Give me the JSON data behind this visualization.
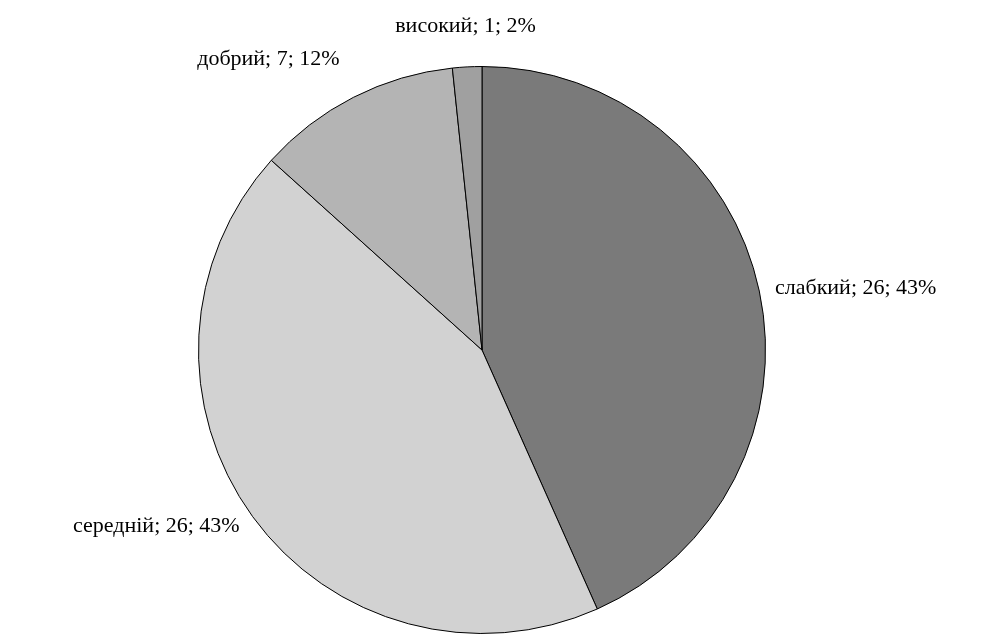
{
  "chart_data": {
    "type": "pie",
    "categories": [
      "слабкий",
      "середній",
      "добрий",
      "високий"
    ],
    "values": [
      26,
      26,
      7,
      1
    ],
    "value_labels": [
      "26; 43%",
      "26; 43%",
      "7; 12%",
      "1; 2%"
    ],
    "colors": [
      "#7a7a7a",
      "#d2d2d2",
      "#b4b4b4",
      "#a0a0a0"
    ],
    "legend": false
  }
}
